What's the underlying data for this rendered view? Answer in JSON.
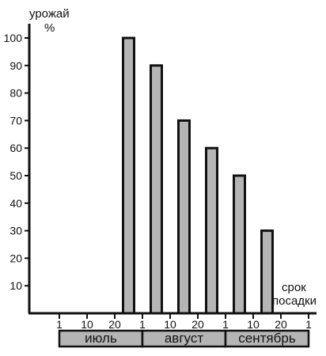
{
  "chart_data": {
    "type": "bar",
    "ylabel": [
      "урожай",
      "%"
    ],
    "xlabel": [
      "срок",
      "посадки"
    ],
    "ylim": [
      0,
      100
    ],
    "yticks": [
      10,
      20,
      30,
      40,
      50,
      60,
      70,
      80,
      90,
      100
    ],
    "x_ticks": [
      "1",
      "10",
      "20",
      "1",
      "10",
      "20",
      "1",
      "10",
      "20",
      "1"
    ],
    "categories": [
      "1 июля",
      "10 июля",
      "20 июля",
      "1 августа",
      "10 августа",
      "20 августа",
      "1 сентября",
      "10 сентября",
      "20 сентября"
    ],
    "values": [
      0,
      0,
      100,
      90,
      70,
      60,
      50,
      30,
      0
    ],
    "months": [
      {
        "label": "июль",
        "span": [
          0,
          3
        ]
      },
      {
        "label": "август",
        "span": [
          3,
          6
        ]
      },
      {
        "label": "сентябрь",
        "span": [
          6,
          9
        ]
      }
    ],
    "grid": false,
    "legend": "none",
    "colors": {
      "bar_fill": "#b5b5b5",
      "stroke": "#111111"
    }
  }
}
